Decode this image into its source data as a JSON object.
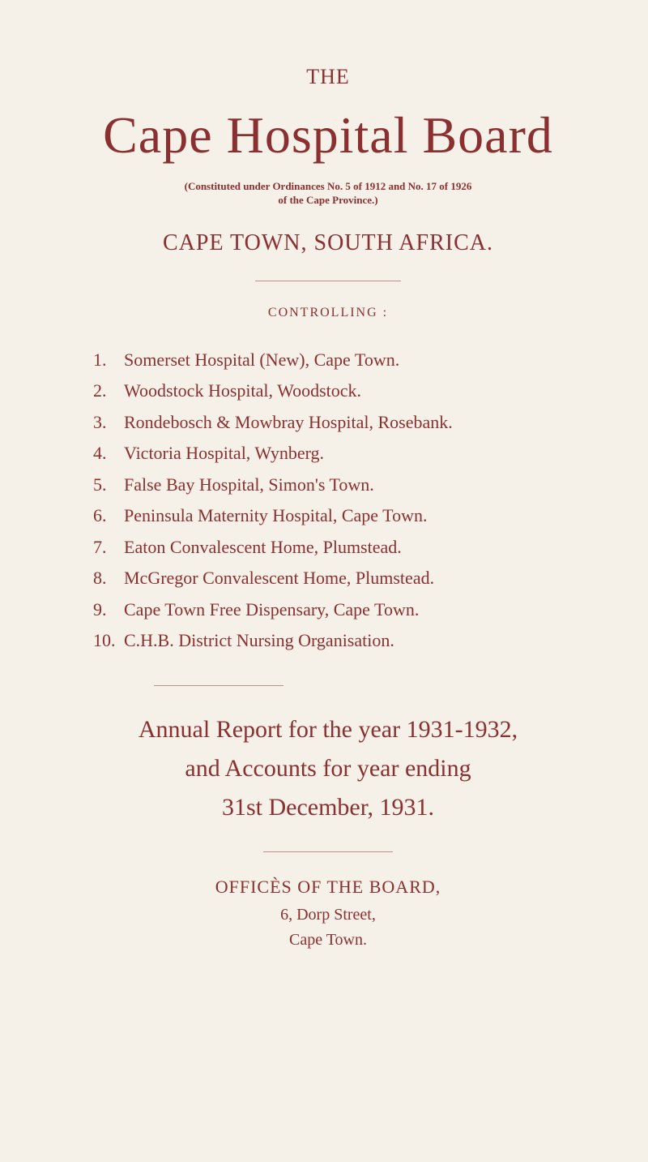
{
  "header": {
    "the": "THE",
    "title": "Cape Hospital Board",
    "ordinance_line1": "(Constituted under Ordinances No. 5 of 1912 and No. 17 of 1926",
    "ordinance_line2": "of the Cape Province.)",
    "location": "CAPE TOWN, SOUTH AFRICA."
  },
  "controlling": {
    "label": "CONTROLLING :",
    "items": [
      {
        "num": "1.",
        "text": "Somerset Hospital (New), Cape Town."
      },
      {
        "num": "2.",
        "text": "Woodstock Hospital, Woodstock."
      },
      {
        "num": "3.",
        "text": "Rondebosch & Mowbray Hospital, Rosebank."
      },
      {
        "num": "4.",
        "text": "Victoria Hospital, Wynberg."
      },
      {
        "num": "5.",
        "text": "False Bay Hospital, Simon's Town."
      },
      {
        "num": "6.",
        "text": "Peninsula Maternity Hospital, Cape Town."
      },
      {
        "num": "7.",
        "text": "Eaton Convalescent Home, Plumstead."
      },
      {
        "num": "8.",
        "text": "McGregor Convalescent Home, Plumstead."
      },
      {
        "num": "9.",
        "text": "Cape Town Free Dispensary, Cape Town."
      },
      {
        "num": "10.",
        "text": "C.H.B. District Nursing Organisation."
      }
    ]
  },
  "report": {
    "line1": "Annual Report for the year 1931-1932,",
    "line2": "and Accounts for year ending",
    "line3": "31st December, 1931."
  },
  "offices": {
    "title": "OFFICÈS OF THE BOARD,",
    "address": "6, Dorp Street,",
    "city": "Cape Town."
  },
  "colors": {
    "text": "#8b3030",
    "background": "#f5f0e8"
  }
}
